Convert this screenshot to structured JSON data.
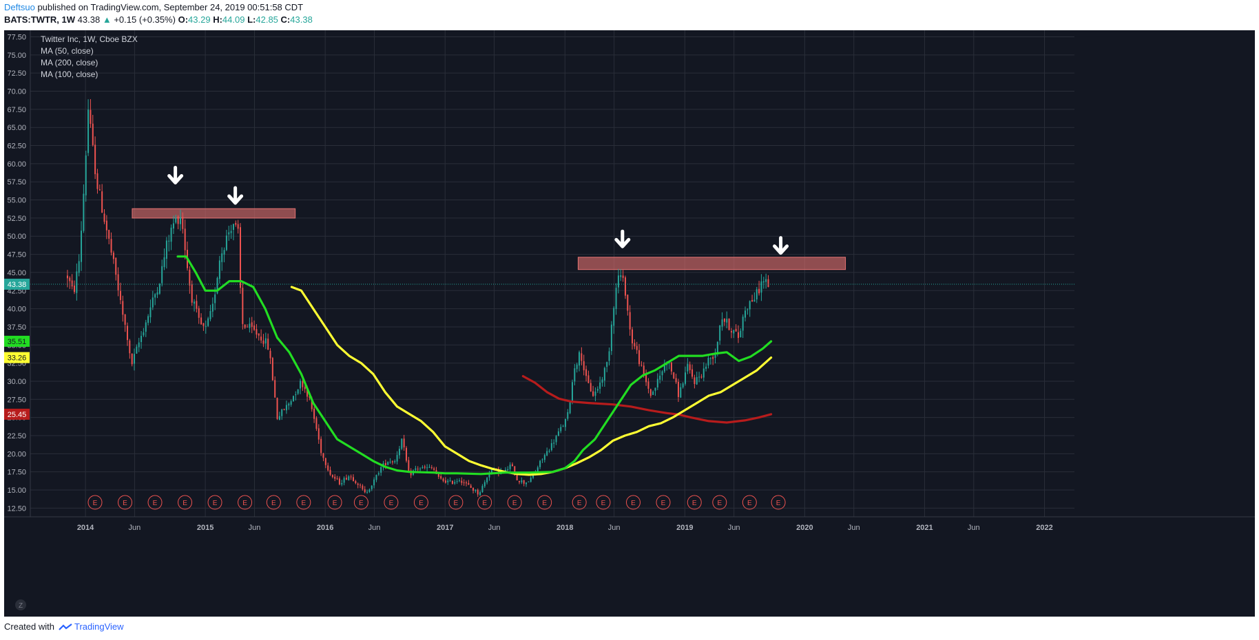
{
  "header": {
    "author": "Deftsuo",
    "published_text": "published on TradingView.com, September 24, 2019 00:51:58 CDT",
    "symbol": "BATS:TWTR, 1W",
    "last": "43.38",
    "change": "+0.15 (+0.35%)",
    "open_label": "O:",
    "open": "43.29",
    "high_label": "H:",
    "high": "44.09",
    "low_label": "L:",
    "low": "42.85",
    "close_label": "C:",
    "close": "43.38"
  },
  "legend": {
    "title": "Twitter Inc, 1W, Cboe BZX",
    "ma50": "MA (50, close)",
    "ma200": "MA (200, close)",
    "ma100": "MA (100, close)"
  },
  "footer": {
    "created_with": "Created with",
    "brand": "TradingView",
    "logo_icon": "tradingview-logo-icon"
  },
  "colors": {
    "background": "#131722",
    "grid": "#2a2e39",
    "up": "#26a69a",
    "down": "#ef5350",
    "ma50": "#22dd22",
    "ma100": "#ffff33",
    "ma200": "#b71c1c",
    "zone_fill": "#d46a6a",
    "price_line": "#26a69a"
  },
  "chart_data": {
    "type": "candlestick",
    "title": "Twitter Inc, 1W, Cboe BZX",
    "y_ticks": [
      12.5,
      15,
      17.5,
      20,
      22.5,
      25,
      27.5,
      30,
      32.5,
      35,
      37.5,
      40,
      42.5,
      45,
      47.5,
      50,
      52.5,
      55,
      57.5,
      60,
      62.5,
      65,
      67.5,
      70,
      72.5,
      75,
      77.5
    ],
    "ylim": [
      11.3,
      78.4
    ],
    "x_ticks": [
      {
        "label": "2014",
        "t": 2014.0
      },
      {
        "label": "Jun",
        "t": 2014.41
      },
      {
        "label": "2015",
        "t": 2015.0
      },
      {
        "label": "Jun",
        "t": 2015.41
      },
      {
        "label": "2016",
        "t": 2016.0
      },
      {
        "label": "Jun",
        "t": 2016.41
      },
      {
        "label": "2017",
        "t": 2017.0
      },
      {
        "label": "Jun",
        "t": 2017.41
      },
      {
        "label": "2018",
        "t": 2018.0
      },
      {
        "label": "Jun",
        "t": 2018.41
      },
      {
        "label": "2019",
        "t": 2019.0
      },
      {
        "label": "Jun",
        "t": 2019.41
      },
      {
        "label": "2020",
        "t": 2020.0
      },
      {
        "label": "Jun",
        "t": 2020.41
      },
      {
        "label": "2021",
        "t": 2021.0
      },
      {
        "label": "Jun",
        "t": 2021.41
      },
      {
        "label": "2022",
        "t": 2022.0
      }
    ],
    "xlim": [
      2013.54,
      2022.25
    ],
    "price_path": [
      [
        2013.85,
        44.5
      ],
      [
        2013.9,
        42
      ],
      [
        2013.95,
        47
      ],
      [
        2014.0,
        60
      ],
      [
        2014.02,
        68
      ],
      [
        2014.06,
        62
      ],
      [
        2014.1,
        57
      ],
      [
        2014.15,
        53
      ],
      [
        2014.2,
        49
      ],
      [
        2014.26,
        44
      ],
      [
        2014.3,
        40
      ],
      [
        2014.35,
        36
      ],
      [
        2014.38,
        32
      ],
      [
        2014.42,
        34
      ],
      [
        2014.5,
        38
      ],
      [
        2014.56,
        41
      ],
      [
        2014.62,
        44
      ],
      [
        2014.68,
        49
      ],
      [
        2014.74,
        52
      ],
      [
        2014.8,
        53
      ],
      [
        2014.84,
        47
      ],
      [
        2014.88,
        42
      ],
      [
        2014.95,
        38
      ],
      [
        2015.0,
        37
      ],
      [
        2015.06,
        40
      ],
      [
        2015.12,
        47
      ],
      [
        2015.18,
        50
      ],
      [
        2015.23,
        52
      ],
      [
        2015.28,
        50
      ],
      [
        2015.3,
        38
      ],
      [
        2015.4,
        37
      ],
      [
        2015.47,
        36
      ],
      [
        2015.52,
        35
      ],
      [
        2015.55,
        32
      ],
      [
        2015.6,
        25
      ],
      [
        2015.7,
        27
      ],
      [
        2015.8,
        30
      ],
      [
        2015.86,
        28
      ],
      [
        2015.92,
        24
      ],
      [
        2015.97,
        20
      ],
      [
        2016.05,
        17
      ],
      [
        2016.12,
        16
      ],
      [
        2016.2,
        17
      ],
      [
        2016.27,
        16
      ],
      [
        2016.33,
        14.5
      ],
      [
        2016.4,
        16
      ],
      [
        2016.46,
        18
      ],
      [
        2016.52,
        19
      ],
      [
        2016.58,
        19
      ],
      [
        2016.64,
        22
      ],
      [
        2016.7,
        17
      ],
      [
        2016.76,
        18
      ],
      [
        2016.82,
        18
      ],
      [
        2016.9,
        18
      ],
      [
        2016.95,
        16.5
      ],
      [
        2017.05,
        16
      ],
      [
        2017.12,
        16.5
      ],
      [
        2017.2,
        15.5
      ],
      [
        2017.28,
        14.5
      ],
      [
        2017.33,
        16
      ],
      [
        2017.38,
        18
      ],
      [
        2017.45,
        17.5
      ],
      [
        2017.5,
        17.5
      ],
      [
        2017.55,
        18.5
      ],
      [
        2017.6,
        16.5
      ],
      [
        2017.66,
        16
      ],
      [
        2017.72,
        16.5
      ],
      [
        2017.8,
        19
      ],
      [
        2017.88,
        21
      ],
      [
        2017.95,
        23
      ],
      [
        2018.02,
        25
      ],
      [
        2018.08,
        32
      ],
      [
        2018.13,
        34
      ],
      [
        2018.18,
        30
      ],
      [
        2018.24,
        28
      ],
      [
        2018.3,
        30
      ],
      [
        2018.36,
        33
      ],
      [
        2018.4,
        40
      ],
      [
        2018.45,
        45
      ],
      [
        2018.5,
        43
      ],
      [
        2018.55,
        36
      ],
      [
        2018.6,
        34
      ],
      [
        2018.65,
        31
      ],
      [
        2018.72,
        28
      ],
      [
        2018.8,
        31
      ],
      [
        2018.85,
        33
      ],
      [
        2018.9,
        31
      ],
      [
        2018.95,
        28
      ],
      [
        2019.02,
        32
      ],
      [
        2019.08,
        30
      ],
      [
        2019.14,
        31
      ],
      [
        2019.2,
        33
      ],
      [
        2019.26,
        34
      ],
      [
        2019.3,
        39
      ],
      [
        2019.35,
        38
      ],
      [
        2019.4,
        37
      ],
      [
        2019.45,
        36
      ],
      [
        2019.5,
        40
      ],
      [
        2019.55,
        41
      ],
      [
        2019.6,
        42
      ],
      [
        2019.65,
        44
      ],
      [
        2019.7,
        43.38
      ]
    ],
    "ma50": [
      [
        2014.77,
        47.2
      ],
      [
        2014.84,
        47.2
      ],
      [
        2014.92,
        45
      ],
      [
        2015.0,
        42.5
      ],
      [
        2015.1,
        42.5
      ],
      [
        2015.2,
        43.8
      ],
      [
        2015.3,
        43.8
      ],
      [
        2015.4,
        43
      ],
      [
        2015.5,
        40
      ],
      [
        2015.6,
        36
      ],
      [
        2015.7,
        34
      ],
      [
        2015.8,
        31
      ],
      [
        2015.9,
        27
      ],
      [
        2016.0,
        24.5
      ],
      [
        2016.1,
        22
      ],
      [
        2016.2,
        21
      ],
      [
        2016.3,
        20
      ],
      [
        2016.4,
        19
      ],
      [
        2016.5,
        18.2
      ],
      [
        2016.6,
        17.7
      ],
      [
        2016.7,
        17.5
      ],
      [
        2016.9,
        17.4
      ],
      [
        2017.0,
        17.3
      ],
      [
        2017.1,
        17.3
      ],
      [
        2017.3,
        17.2
      ],
      [
        2017.5,
        17.4
      ],
      [
        2017.7,
        17.4
      ],
      [
        2017.9,
        17.5
      ],
      [
        2018.0,
        18
      ],
      [
        2018.08,
        19
      ],
      [
        2018.15,
        20.5
      ],
      [
        2018.25,
        22
      ],
      [
        2018.35,
        24.5
      ],
      [
        2018.45,
        27
      ],
      [
        2018.55,
        29.5
      ],
      [
        2018.65,
        30.8
      ],
      [
        2018.75,
        31.5
      ],
      [
        2018.85,
        32.5
      ],
      [
        2018.95,
        33.5
      ],
      [
        2019.05,
        33.5
      ],
      [
        2019.15,
        33.5
      ],
      [
        2019.25,
        33.8
      ],
      [
        2019.35,
        34
      ],
      [
        2019.45,
        32.8
      ],
      [
        2019.55,
        33.4
      ],
      [
        2019.65,
        34.5
      ],
      [
        2019.72,
        35.5
      ]
    ],
    "ma100": [
      [
        2015.72,
        43
      ],
      [
        2015.8,
        42.5
      ],
      [
        2015.9,
        40
      ],
      [
        2016.0,
        37.5
      ],
      [
        2016.1,
        35
      ],
      [
        2016.2,
        33.5
      ],
      [
        2016.3,
        32.5
      ],
      [
        2016.4,
        31
      ],
      [
        2016.5,
        28.5
      ],
      [
        2016.6,
        26.5
      ],
      [
        2016.7,
        25.5
      ],
      [
        2016.8,
        24.5
      ],
      [
        2016.9,
        23
      ],
      [
        2017.0,
        21
      ],
      [
        2017.1,
        20
      ],
      [
        2017.2,
        19
      ],
      [
        2017.3,
        18.4
      ],
      [
        2017.4,
        17.9
      ],
      [
        2017.5,
        17.5
      ],
      [
        2017.6,
        17.2
      ],
      [
        2017.7,
        17.1
      ],
      [
        2017.8,
        17.2
      ],
      [
        2017.9,
        17.5
      ],
      [
        2018.0,
        18
      ],
      [
        2018.1,
        18.7
      ],
      [
        2018.2,
        19.5
      ],
      [
        2018.3,
        20.5
      ],
      [
        2018.4,
        21.8
      ],
      [
        2018.5,
        22.5
      ],
      [
        2018.6,
        23
      ],
      [
        2018.7,
        23.8
      ],
      [
        2018.8,
        24.2
      ],
      [
        2018.9,
        25
      ],
      [
        2019.0,
        26
      ],
      [
        2019.1,
        27
      ],
      [
        2019.2,
        28
      ],
      [
        2019.3,
        28.5
      ],
      [
        2019.4,
        29.5
      ],
      [
        2019.5,
        30.5
      ],
      [
        2019.6,
        31.5
      ],
      [
        2019.72,
        33.26
      ]
    ],
    "ma200": [
      [
        2017.65,
        30.7
      ],
      [
        2017.75,
        29.8
      ],
      [
        2017.85,
        28.5
      ],
      [
        2017.95,
        27.6
      ],
      [
        2018.05,
        27.2
      ],
      [
        2018.2,
        27
      ],
      [
        2018.4,
        26.8
      ],
      [
        2018.55,
        26.5
      ],
      [
        2018.7,
        26
      ],
      [
        2018.85,
        25.6
      ],
      [
        2018.95,
        25.4
      ],
      [
        2019.05,
        25
      ],
      [
        2019.2,
        24.5
      ],
      [
        2019.35,
        24.3
      ],
      [
        2019.5,
        24.6
      ],
      [
        2019.62,
        25
      ],
      [
        2019.72,
        25.45
      ]
    ],
    "zones": [
      {
        "t1": 2014.39,
        "t2": 2015.75,
        "y1": 52.5,
        "y2": 53.8
      },
      {
        "t1": 2018.11,
        "t2": 2020.34,
        "y1": 45.4,
        "y2": 47.1
      }
    ],
    "arrows": [
      {
        "t": 2014.75,
        "y": 57
      },
      {
        "t": 2015.25,
        "y": 54.2
      },
      {
        "t": 2018.48,
        "y": 48.2
      },
      {
        "t": 2019.8,
        "y": 47.3
      }
    ],
    "earnings_label": "E",
    "earnings_t": [
      2014.08,
      2014.33,
      2014.58,
      2014.83,
      2015.08,
      2015.33,
      2015.57,
      2015.82,
      2016.08,
      2016.3,
      2016.55,
      2016.8,
      2017.09,
      2017.33,
      2017.58,
      2017.83,
      2018.12,
      2018.32,
      2018.57,
      2018.82,
      2019.08,
      2019.29,
      2019.54,
      2019.78
    ],
    "price_label": "43.38",
    "price_value": 43.38,
    "axis_tags": [
      {
        "label": "43.38",
        "value": 43.38,
        "bg": "#26a69a",
        "fg": "#ffffff"
      },
      {
        "label": "35.51",
        "value": 35.51,
        "bg": "#22dd22",
        "fg": "#131722"
      },
      {
        "label": "33.26",
        "value": 33.26,
        "bg": "#ffff33",
        "fg": "#131722"
      },
      {
        "label": "25.45",
        "value": 25.45,
        "bg": "#b71c1c",
        "fg": "#ffffff"
      }
    ],
    "z_label": "Z"
  }
}
